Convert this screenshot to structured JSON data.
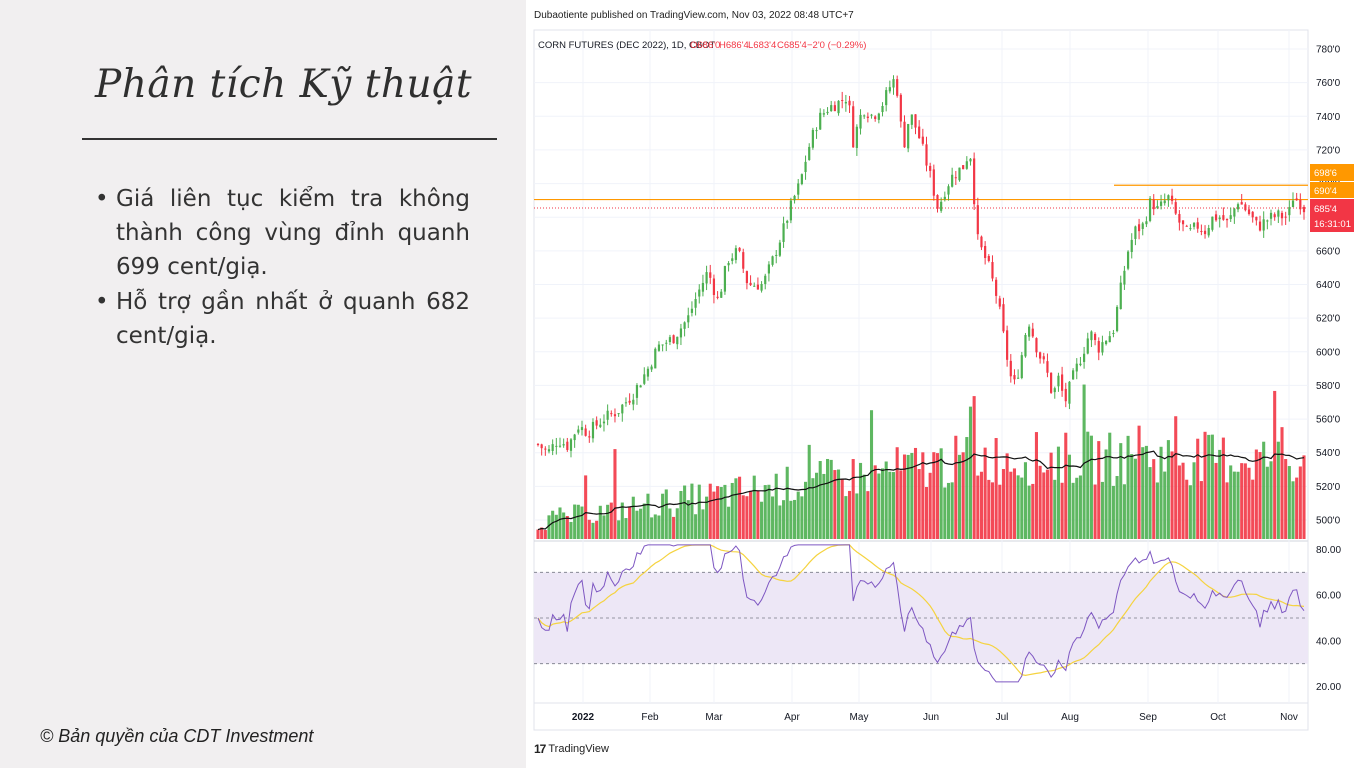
{
  "slide": {
    "title": "Phân tích Kỹ thuật",
    "bullets": [
      "Giá liên tục kiểm tra không thành công vùng đỉnh quanh 699 cent/giạ.",
      "Hỗ trợ gần nhất ở quanh 682 cent/giạ."
    ],
    "copyright": "© Bản quyền của CDT Investment"
  },
  "tradingview": {
    "published_note": "Dubaotiente published on TradingView.com, Nov 03, 2022 08:48 UTC+7",
    "logo_text": "TradingView",
    "logo_mark": "17"
  },
  "chart_data": {
    "type": "candlestick",
    "symbol_header": {
      "name": "CORN FUTURES (DEC 2022), 1D, CBOT",
      "open": "O686'0",
      "high": "H686'4",
      "low": "L683'4",
      "close": "C685'4",
      "change": "−2'0 (−0.29%)"
    },
    "colors": {
      "up": "#4caf50",
      "down": "#f23645",
      "level": "#ff9800",
      "ma": "#111111",
      "rsi": "#7e57c2",
      "rsi_ma": "#f5d33f",
      "rsi_band": "#ede7f6"
    },
    "price_axis": {
      "ylim": [
        490,
        790
      ],
      "ticks": [
        "780'0",
        "760'0",
        "740'0",
        "720'0",
        "700'0",
        "680'0",
        "660'0",
        "640'0",
        "620'0",
        "600'0",
        "580'0",
        "560'0",
        "540'0",
        "520'0",
        "500'0"
      ]
    },
    "x_axis": {
      "ticks": [
        "2022",
        "Feb",
        "Mar",
        "Apr",
        "May",
        "Jun",
        "Jul",
        "Aug",
        "Sep",
        "Oct",
        "Nov"
      ]
    },
    "price_labels": [
      {
        "text": "698'6",
        "value": 698.75,
        "color": "#ff9800"
      },
      {
        "text": "690'4",
        "value": 690.5,
        "color": "#ff9800"
      },
      {
        "text": "685'4",
        "value": 685.5,
        "color": "#f23645"
      },
      {
        "text": "16:31:01",
        "value": 685.5,
        "color": "#f23645"
      }
    ],
    "horizontal_levels": [
      {
        "value": 699,
        "from": "2022-08-17"
      },
      {
        "value": 690.5,
        "from": "2021-12-31"
      }
    ],
    "rsi_axis": {
      "ylim": [
        15,
        85
      ],
      "ticks": [
        "80.00",
        "60.00",
        "40.00",
        "20.00"
      ],
      "bands": [
        70,
        30
      ],
      "mid": 50
    },
    "rsi_last": 52
  }
}
